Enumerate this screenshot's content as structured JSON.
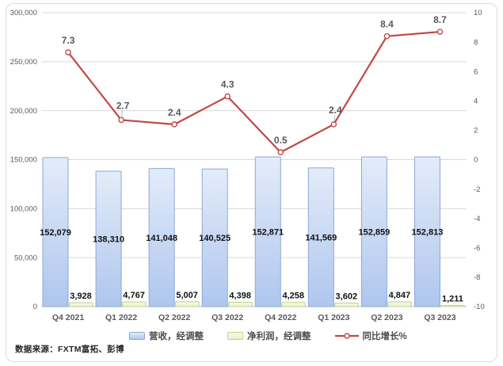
{
  "chart_data": {
    "type": "bar",
    "subtype": "combo-bar-line-dual-axis",
    "categories": [
      "Q4 2021",
      "Q1 2022",
      "Q2 2022",
      "Q3 2022",
      "Q4 2022",
      "Q1 2023",
      "Q2 2023",
      "Q3 2023"
    ],
    "series": [
      {
        "name": "营收，经调整",
        "type": "bar",
        "axis": "left",
        "values": [
          152079,
          138310,
          141048,
          140525,
          152871,
          141569,
          152859,
          152813
        ]
      },
      {
        "name": "净利润，经调整",
        "type": "bar",
        "axis": "left",
        "values": [
          3928,
          4767,
          5007,
          4398,
          4258,
          3602,
          4847,
          1211
        ]
      },
      {
        "name": "同比增长%",
        "type": "line",
        "axis": "right",
        "values": [
          7.3,
          2.7,
          2.4,
          4.3,
          0.5,
          2.4,
          8.4,
          8.7
        ]
      }
    ],
    "left_axis": {
      "min": 0,
      "max": 300000,
      "step": 50000,
      "tick_labels": [
        "0",
        "50,000",
        "100,000",
        "150,000",
        "200,000",
        "250,000",
        "300,000"
      ]
    },
    "right_axis": {
      "min": -10,
      "max": 10,
      "step": 2,
      "tick_labels": [
        "10",
        "8",
        "6",
        "4",
        "2",
        "0",
        "-2",
        "-4",
        "-6",
        "-8",
        "-10"
      ]
    },
    "grid": true,
    "legend_position": "bottom",
    "title": "",
    "xlabel": "",
    "ylabel": "",
    "source_note": "数据来源：FXTM富拓、彭博"
  },
  "colors": {
    "bar_revenue_top": "#e3ecf9",
    "bar_revenue_bottom": "#afc6ee",
    "bar_revenue_border": "#8ca9d4",
    "bar_profit_fill": "#e9f4d2",
    "bar_profit_border": "#bcd38b",
    "line": "#bf4a45",
    "grid": "#d9d9d9",
    "baseline": "#b9b9b9",
    "axis_text": "#595959",
    "pct_text": "#595959",
    "label_text": "#111111",
    "legend_text": "#4d4d4d",
    "source_text": "#262626",
    "frame_border": "#dcdcdc",
    "leader": "#a6a6a6"
  }
}
